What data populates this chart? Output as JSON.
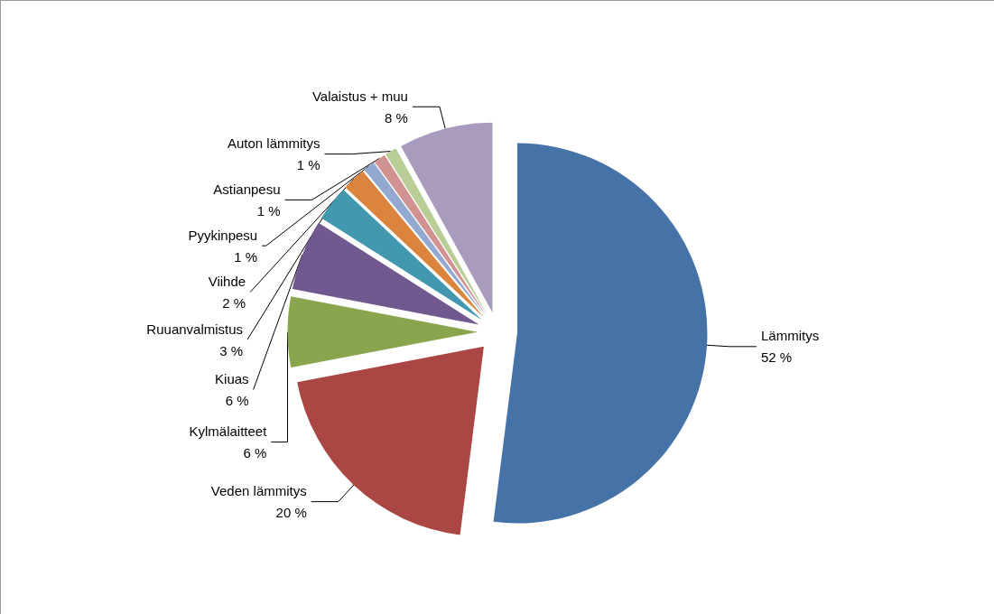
{
  "chart_data": {
    "type": "pie",
    "categories": [
      "Lämmitys",
      "Veden lämmitys",
      "Kylmälaitteet",
      "Kiuas",
      "Ruuanvalmistus",
      "Viihde",
      "Pyykinpesu",
      "Astianpesu",
      "Auton lämmitys",
      "Valaistus + muu"
    ],
    "values": [
      52,
      20,
      6,
      6,
      3,
      2,
      1,
      1,
      1,
      8
    ],
    "value_labels": [
      "52 %",
      "20 %",
      "6 %",
      "6 %",
      "3 %",
      "2 %",
      "1 %",
      "1 %",
      "1 %",
      "8 %"
    ],
    "colors": [
      "#4572a7",
      "#aa4643",
      "#89a54e",
      "#71588f",
      "#4198af",
      "#db843d",
      "#93a9cf",
      "#d19392",
      "#b9cd96",
      "#a99bbd"
    ],
    "legend": false
  }
}
